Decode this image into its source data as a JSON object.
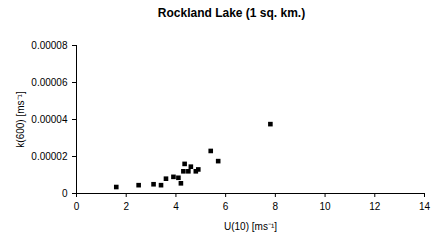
{
  "chart_data": {
    "type": "scatter",
    "title": "Rockland Lake (1 sq. km.)",
    "x_label": "U(10) [ms⁻¹]",
    "y_label": "k(600) [ms⁻¹]",
    "x": [
      1.6,
      2.5,
      3.1,
      3.4,
      3.6,
      3.9,
      4.1,
      4.2,
      4.3,
      4.35,
      4.5,
      4.6,
      4.8,
      4.9,
      5.4,
      5.7,
      7.8
    ],
    "values": [
      3.5e-06,
      4.5e-06,
      5e-06,
      4.5e-06,
      8e-06,
      9e-06,
      8.5e-06,
      5.5e-06,
      1.2e-05,
      1.6e-05,
      1.2e-05,
      1.45e-05,
      1.2e-05,
      1.3e-05,
      2.3e-05,
      1.75e-05,
      3.75e-05
    ],
    "color": "#000000",
    "marker": "square",
    "xlim": [
      0,
      14
    ],
    "xticks": [
      0,
      2,
      4,
      6,
      8,
      10,
      12,
      14
    ],
    "ylim": [
      0,
      8e-05
    ],
    "yticks": [
      0,
      {
        "value": 2e-05,
        "label": "0.00002"
      },
      {
        "value": 4e-05,
        "label": "0.00004"
      },
      {
        "value": 6e-05,
        "label": "0.00006"
      },
      {
        "value": 8e-05,
        "label": "0.00008"
      }
    ],
    "grid": false
  }
}
